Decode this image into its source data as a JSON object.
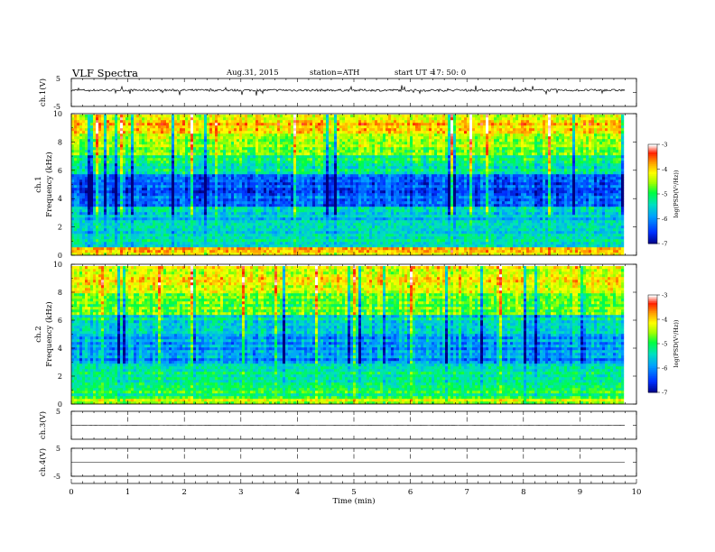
{
  "header": {
    "title": "VLF  Spectra",
    "date": "Aug.31, 2015",
    "station": "station=ATH",
    "start_label": "start  UT  =",
    "start_time": "17: 50: 0"
  },
  "chart_data": [
    {
      "type": "line",
      "name": "ch1-waveform",
      "ylabel": "ch.1(V)",
      "ylim": [
        -5,
        5
      ],
      "yticks": [
        "5",
        "-5"
      ],
      "xlim": [
        0,
        10
      ],
      "data_extent_min": 9.8,
      "baseline": 0.8,
      "amplitude": 0.8
    },
    {
      "type": "heatmap",
      "name": "ch1-spectrogram",
      "ylabel_top": "ch.1",
      "ylabel": "Frequency  (kHz)",
      "ylim": [
        0,
        10
      ],
      "yticks": [
        "0",
        "2",
        "4",
        "6",
        "8",
        "10"
      ],
      "xlim": [
        0,
        10
      ],
      "data_extent_min": 9.8,
      "colorbar": {
        "label": "log(PSD(V²/Hz))",
        "range": [
          -7,
          -3
        ],
        "ticks": [
          "-3",
          "-4",
          "-5",
          "-6",
          "-7"
        ],
        "colors": [
          "#000080",
          "#0030ff",
          "#00a0ff",
          "#00e0c0",
          "#00ff40",
          "#a0ff00",
          "#ffff00",
          "#ffa000",
          "#ff2000",
          "#ffffff"
        ]
      },
      "bands": [
        {
          "f0": 0.0,
          "f1": 0.3,
          "level": -4.3
        },
        {
          "f0": 0.3,
          "f1": 0.7,
          "level": -3.9
        },
        {
          "f0": 0.7,
          "f1": 2.5,
          "level": -5.4
        },
        {
          "f0": 2.5,
          "f1": 3.5,
          "level": -5.6
        },
        {
          "f0": 3.5,
          "f1": 5.8,
          "level": -6.3
        },
        {
          "f0": 5.8,
          "f1": 7.2,
          "level": -5.2
        },
        {
          "f0": 7.2,
          "f1": 8.6,
          "level": -4.6
        },
        {
          "f0": 8.6,
          "f1": 10.0,
          "level": -4.0
        }
      ]
    },
    {
      "type": "heatmap",
      "name": "ch2-spectrogram",
      "ylabel_top": "ch.2",
      "ylabel": "Frequency  (kHz)",
      "ylim": [
        0,
        10
      ],
      "yticks": [
        "0",
        "2",
        "4",
        "6",
        "8",
        "10"
      ],
      "xlim": [
        0,
        10
      ],
      "data_extent_min": 9.8,
      "colorbar": {
        "label": "log(PSD(V²/Hz))",
        "range": [
          -7,
          -3
        ],
        "ticks": [
          "-3",
          "-4",
          "-5",
          "-6",
          "-7"
        ],
        "colors": [
          "#000080",
          "#0030ff",
          "#00a0ff",
          "#00e0c0",
          "#00ff40",
          "#a0ff00",
          "#ffff00",
          "#ffa000",
          "#ff2000",
          "#ffffff"
        ]
      },
      "bands": [
        {
          "f0": 0.0,
          "f1": 0.4,
          "level": -4.4
        },
        {
          "f0": 0.4,
          "f1": 1.5,
          "level": -5.0
        },
        {
          "f0": 1.5,
          "f1": 3.0,
          "level": -5.2
        },
        {
          "f0": 3.0,
          "f1": 5.2,
          "level": -5.9
        },
        {
          "f0": 5.2,
          "f1": 6.5,
          "level": -5.4
        },
        {
          "f0": 6.5,
          "f1": 8.0,
          "level": -4.7
        },
        {
          "f0": 8.0,
          "f1": 10.0,
          "level": -4.1
        }
      ]
    },
    {
      "type": "line",
      "name": "ch3-waveform",
      "ylabel": "ch.3(V)",
      "ylim": [
        -5,
        5
      ],
      "yticks": [
        "5"
      ],
      "xlim": [
        0,
        10
      ],
      "data_extent_min": 9.8,
      "baseline": 0.0,
      "amplitude": 0.05
    },
    {
      "type": "line",
      "name": "ch4-waveform",
      "ylabel": "ch.4(V)",
      "ylim": [
        -5,
        5
      ],
      "yticks": [
        "5",
        "-5"
      ],
      "xlim": [
        0,
        10
      ],
      "data_extent_min": 9.8,
      "baseline": 0.0,
      "amplitude": 0.0
    }
  ],
  "xaxis": {
    "label": "Time  (min)",
    "ticks": [
      "0",
      "1",
      "2",
      "3",
      "4",
      "5",
      "6",
      "7",
      "8",
      "9",
      "10"
    ],
    "range": [
      0,
      10
    ]
  }
}
